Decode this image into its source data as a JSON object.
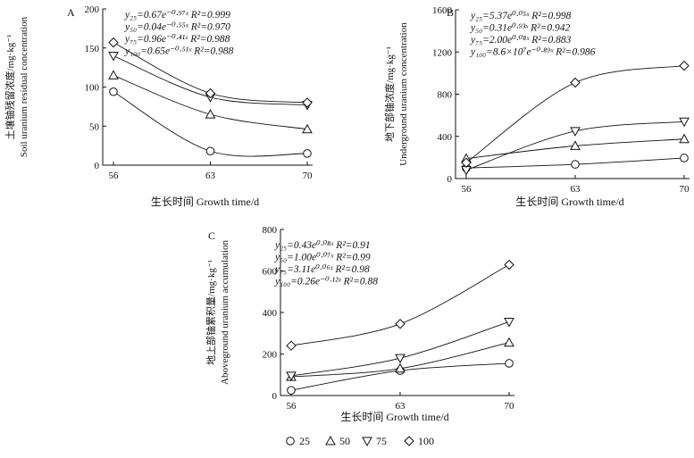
{
  "chart_data": [
    {
      "type": "line",
      "panel": "A",
      "categories": [
        "56",
        "63",
        "70"
      ],
      "x": [
        56,
        63,
        70
      ],
      "ylim": [
        0,
        200
      ],
      "yticks": [
        "0",
        "50",
        "100",
        "150",
        "200"
      ],
      "xlabel": "生长时间 Growth time/d",
      "ylabel_cn": "土壤铀残留浓度/mg·kg⁻¹",
      "ylabel_en": "Soil uranium residual concentration",
      "equations": [
        "y₂₅=0.67e⁻⁰·⁹⁷ˣ  R²=0.999",
        "y₅₀=0.04e⁻⁰·⁵⁵ˣ  R²=0.970",
        "y₇₅=0.96e⁻⁰·⁴¹ˣ  R²=0.988",
        "y₁₀₀=0.65e⁻⁰·⁵¹ˣ  R²=0.988"
      ],
      "series": [
        {
          "name": "25",
          "marker": "circle",
          "values": [
            94,
            18,
            15
          ]
        },
        {
          "name": "50",
          "marker": "triangle-up",
          "values": [
            115,
            65,
            46
          ]
        },
        {
          "name": "75",
          "marker": "triangle-down",
          "values": [
            140,
            87,
            77
          ]
        },
        {
          "name": "100",
          "marker": "diamond",
          "values": [
            157,
            92,
            80
          ]
        }
      ]
    },
    {
      "type": "line",
      "panel": "B",
      "categories": [
        "56",
        "63",
        "70"
      ],
      "x": [
        56,
        63,
        70
      ],
      "ylim": [
        0,
        1600
      ],
      "yticks": [
        "0",
        "400",
        "800",
        "1200",
        "1600"
      ],
      "xlabel": "生长时间 Growth time/d",
      "ylabel_cn": "地下部铀浓度/mg·kg⁻¹",
      "ylabel_en": "Underground uranium concentration",
      "equations": [
        "y₂₅=5.37e⁰·⁰⁵ˣ  R²=0.998",
        "y₅₀=0.31e⁰·⁹³ˣ  R²=0.942",
        "y₇₅=2.00e⁰·⁰⁸ˣ  R²=0.883",
        "y₁₀₀=8.6×10⁷e⁻⁰·⁸⁹ˣ  R²=0.986"
      ],
      "series": [
        {
          "name": "25",
          "marker": "circle",
          "values": [
            100,
            135,
            195
          ]
        },
        {
          "name": "50",
          "marker": "triangle-up",
          "values": [
            190,
            310,
            375
          ]
        },
        {
          "name": "75",
          "marker": "triangle-down",
          "values": [
            80,
            450,
            540
          ]
        },
        {
          "name": "100",
          "marker": "diamond",
          "values": [
            150,
            910,
            1070
          ]
        }
      ]
    },
    {
      "type": "line",
      "panel": "C",
      "categories": [
        "56",
        "63",
        "70"
      ],
      "x": [
        56,
        63,
        70
      ],
      "ylim": [
        0,
        800
      ],
      "yticks": [
        "0",
        "200",
        "400",
        "600",
        "800"
      ],
      "xlabel": "生长时间 Growth time/d",
      "ylabel_cn": "地上部铀累积量/mg·kg⁻¹",
      "ylabel_en": "Aboveground uranium accumulation",
      "equations": [
        "y₂₅=0.43e⁰·⁰⁸ˣ  R²=0.91",
        "y₅₀=1.00e⁰·⁰⁷ˣ  R²=0.99",
        "y₇₅=3.11e⁰·⁰⁶ˣ  R²=0.98",
        "y₁₀₀=0.26e⁻⁰·¹²ˣ  R²=0.88"
      ],
      "series": [
        {
          "name": "25",
          "marker": "circle",
          "values": [
            25,
            120,
            155
          ]
        },
        {
          "name": "50",
          "marker": "triangle-up",
          "values": [
            90,
            130,
            255
          ]
        },
        {
          "name": "75",
          "marker": "triangle-down",
          "values": [
            95,
            180,
            355
          ]
        },
        {
          "name": "100",
          "marker": "diamond",
          "values": [
            240,
            345,
            630
          ]
        }
      ]
    }
  ],
  "legend": [
    {
      "label": "25",
      "marker": "circle"
    },
    {
      "label": "50",
      "marker": "triangle-up"
    },
    {
      "label": "75",
      "marker": "triangle-down"
    },
    {
      "label": "100",
      "marker": "diamond"
    }
  ]
}
